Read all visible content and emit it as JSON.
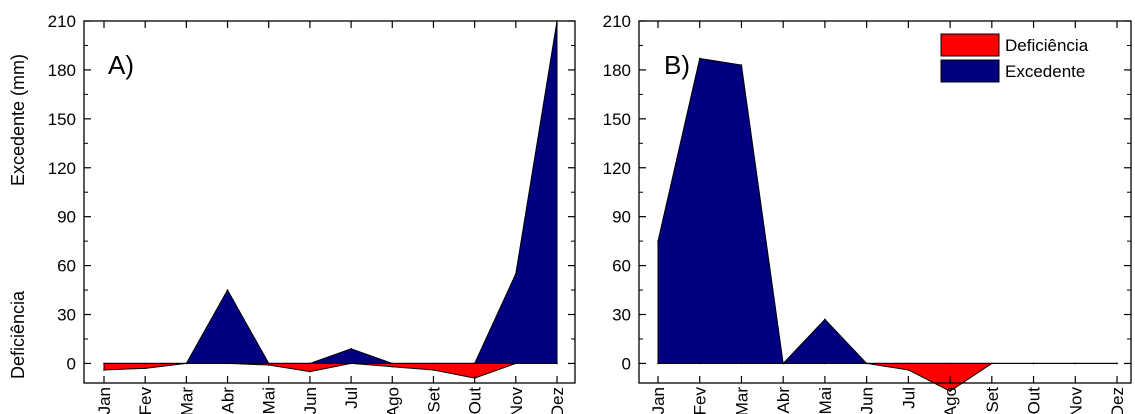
{
  "colors": {
    "deficiencia": "#ff0000",
    "excedente": "#000080",
    "axis": "#000000"
  },
  "legend": {
    "items": [
      "Deficiência",
      "Excedente"
    ],
    "placement": "top-right of panel B"
  },
  "chart_data": [
    {
      "type": "area",
      "panel_label": "A)",
      "categories": [
        "Jan",
        "Fev",
        "Mar",
        "Abr",
        "Mai",
        "Jun",
        "Jul",
        "Ago",
        "Set",
        "Out",
        "Nov",
        "Dez"
      ],
      "ylabel_top": "Excedente (mm)",
      "ylabel_bottom": "Deficiência",
      "ylim": [
        -12,
        210
      ],
      "yticks": [
        0,
        30,
        60,
        90,
        120,
        150,
        180,
        210
      ],
      "grid": false,
      "series": [
        {
          "name": "Deficiência",
          "values": [
            -4,
            -3,
            0,
            0,
            -1,
            -5,
            0,
            -2,
            -4,
            -9,
            0,
            0
          ]
        },
        {
          "name": "Excedente",
          "values": [
            0,
            0,
            0,
            45,
            0,
            0,
            9,
            0,
            0,
            0,
            55,
            210
          ]
        }
      ]
    },
    {
      "type": "area",
      "panel_label": "B)",
      "categories": [
        "Jan",
        "Fev",
        "Mar",
        "Abr",
        "Mai",
        "Jun",
        "Jul",
        "Ago",
        "Set",
        "Out",
        "Nov",
        "Dez"
      ],
      "ylim": [
        -12,
        210
      ],
      "yticks": [
        0,
        30,
        60,
        90,
        120,
        150,
        180,
        210
      ],
      "grid": false,
      "series": [
        {
          "name": "Deficiência",
          "values": [
            0,
            0,
            0,
            0,
            0,
            0,
            -4,
            -17,
            0,
            0,
            0,
            0
          ]
        },
        {
          "name": "Excedente",
          "values": [
            75,
            187,
            183,
            0,
            27,
            0,
            0,
            0,
            0,
            0,
            0,
            0
          ]
        }
      ]
    }
  ]
}
